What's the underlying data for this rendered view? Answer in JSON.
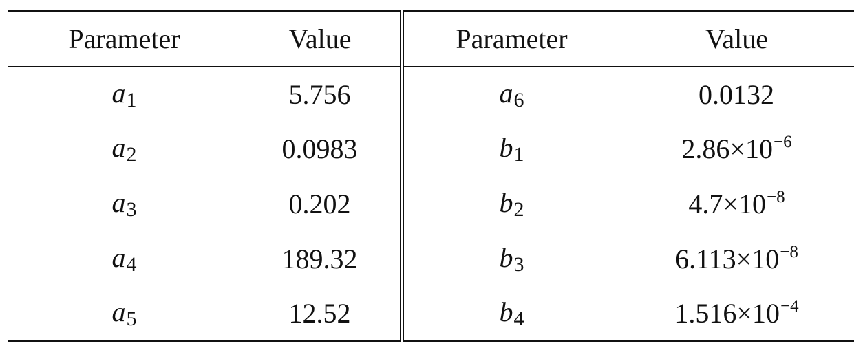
{
  "table": {
    "headers": [
      "Parameter",
      "Value",
      "Parameter",
      "Value"
    ],
    "rows": [
      {
        "left": {
          "symbol": "a",
          "sub": "1",
          "value": "5.756",
          "exp": ""
        },
        "right": {
          "symbol": "a",
          "sub": "6",
          "value": "0.0132",
          "exp": ""
        }
      },
      {
        "left": {
          "symbol": "a",
          "sub": "2",
          "value": "0.0983",
          "exp": ""
        },
        "right": {
          "symbol": "b",
          "sub": "1",
          "value": "2.86×10",
          "exp": "−6"
        }
      },
      {
        "left": {
          "symbol": "a",
          "sub": "3",
          "value": "0.202",
          "exp": ""
        },
        "right": {
          "symbol": "b",
          "sub": "2",
          "value": "4.7×10",
          "exp": "−8"
        }
      },
      {
        "left": {
          "symbol": "a",
          "sub": "4",
          "value": "189.32",
          "exp": ""
        },
        "right": {
          "symbol": "b",
          "sub": "3",
          "value": "6.113×10",
          "exp": "−8"
        }
      },
      {
        "left": {
          "symbol": "a",
          "sub": "5",
          "value": "12.52",
          "exp": ""
        },
        "right": {
          "symbol": "b",
          "sub": "4",
          "value": "1.516×10",
          "exp": "−4"
        }
      }
    ]
  }
}
